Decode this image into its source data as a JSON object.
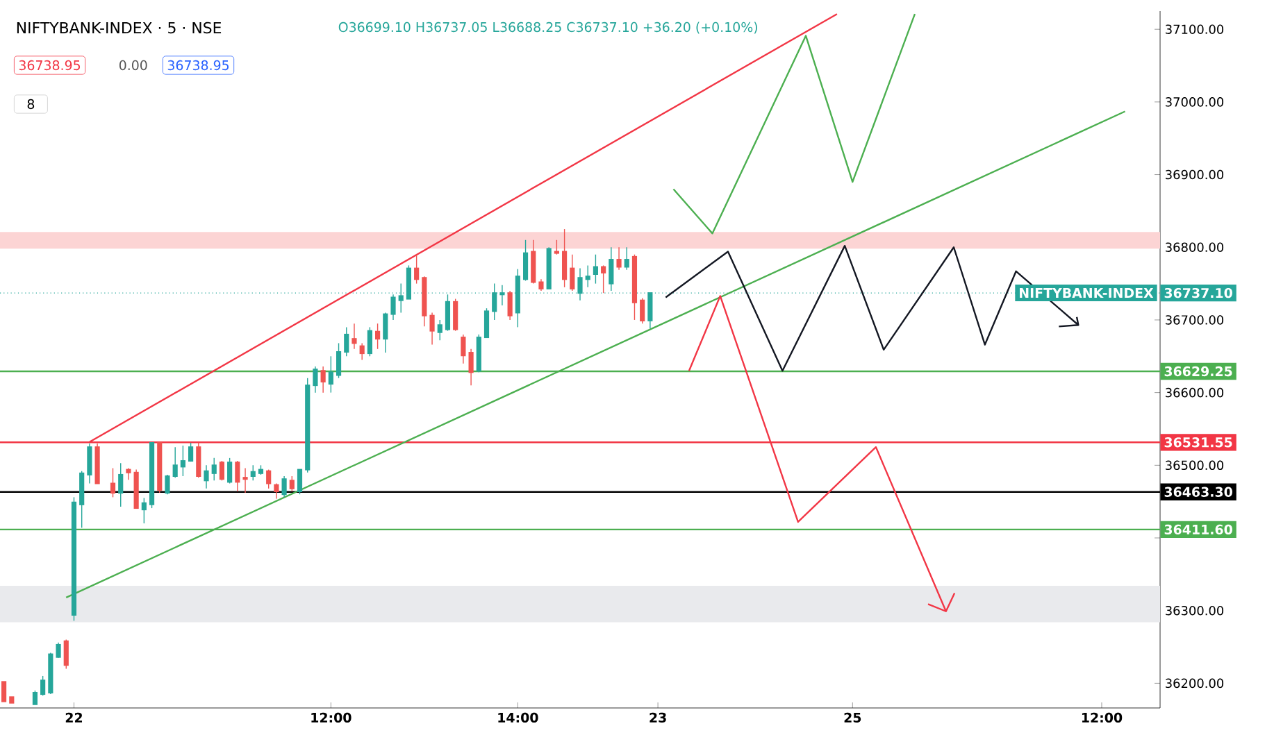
{
  "chart_data": {
    "type": "candlestick",
    "title": "NIFTYBANK-INDEX · 5 · NSE",
    "annotations": [
      "O36699.10 H36737.05 L36688.25 C36737.10 +36.20 (+0.10%)",
      "36738.95",
      "0.00",
      "36738.95",
      "8",
      "NIFTYBANK-INDEX"
    ],
    "categories": [
      null,
      null,
      null,
      null,
      null,
      null,
      null,
      null,
      null,
      "22",
      null,
      null,
      null,
      null,
      null,
      null,
      null,
      null,
      null,
      null,
      null,
      null,
      null,
      null,
      null,
      null,
      null,
      null,
      null,
      null,
      null,
      null,
      null,
      null,
      null,
      null,
      null,
      null,
      null,
      null,
      null,
      null,
      "12:00",
      null,
      null,
      null,
      null,
      null,
      null,
      null,
      null,
      null,
      null,
      null,
      null,
      null,
      null,
      null,
      null,
      null,
      null,
      null,
      null,
      null,
      null,
      null,
      "14:00",
      null,
      null,
      null,
      null,
      null,
      null,
      null,
      null,
      null,
      null,
      null,
      null,
      null,
      null,
      null,
      null,
      null,
      "23",
      null,
      null,
      null,
      null,
      null,
      null,
      null,
      null,
      null,
      null,
      null,
      null,
      null,
      null,
      null,
      null,
      null,
      null,
      null,
      null,
      null,
      null,
      null,
      null,
      "25",
      null,
      null,
      null,
      null,
      null,
      null,
      null,
      null,
      null,
      null,
      null,
      null,
      null,
      null,
      null,
      null,
      null,
      null,
      null,
      null,
      null,
      null,
      null,
      null,
      null,
      null,
      null,
      null,
      null,
      null,
      null,
      "12:00",
      null,
      null,
      null,
      null,
      null,
      null,
      null
    ],
    "ohlc": [
      [
        36202,
        36202,
        36175,
        36175
      ],
      [
        36181,
        36181,
        36173,
        36173
      ],
      null,
      null,
      [
        36171,
        36190,
        36171,
        36187
      ],
      [
        36185,
        36210,
        36183,
        36204
      ],
      [
        36187,
        36242,
        36185,
        36240
      ],
      [
        36236,
        36256,
        36235,
        36253
      ],
      [
        36258,
        36260,
        36220,
        36225
      ],
      [
        36294,
        36456,
        36286,
        36449
      ],
      [
        36446,
        36492,
        36414,
        36489
      ],
      [
        36487,
        36530,
        36475,
        36525
      ],
      [
        36525,
        36530,
        36475,
        36475
      ],
      null,
      [
        36475,
        36496,
        36456,
        36462
      ],
      [
        36462,
        36503,
        36443,
        36487
      ],
      [
        36494,
        36496,
        36480,
        36490
      ],
      [
        36490,
        36494,
        36441,
        36441
      ],
      [
        36439,
        36455,
        36420,
        36448
      ],
      [
        36446,
        36531,
        36441,
        36531
      ],
      [
        36531,
        36531,
        36462,
        36466
      ],
      [
        36462,
        36487,
        36460,
        36485
      ],
      [
        36485,
        36525,
        36483,
        36500
      ],
      [
        36498,
        36527,
        36485,
        36506
      ],
      [
        36506,
        36531,
        36505,
        36525
      ],
      [
        36525,
        36531,
        36483,
        36485
      ],
      [
        36479,
        36500,
        36468,
        36492
      ],
      [
        36489,
        36510,
        36479,
        36500
      ],
      [
        36504,
        36506,
        36479,
        36481
      ],
      [
        36477,
        36510,
        36475,
        36504
      ],
      [
        36504,
        36506,
        36464,
        36477
      ],
      [
        36483,
        36496,
        36462,
        36481
      ],
      [
        36485,
        36500,
        36479,
        36491
      ],
      [
        36489,
        36500,
        36487,
        36494
      ],
      [
        36492,
        36494,
        36468,
        36475
      ],
      [
        36473,
        36475,
        36454,
        36464
      ],
      [
        36460,
        36485,
        36456,
        36481
      ],
      [
        36479,
        36485,
        36464,
        36468
      ],
      [
        36464,
        36494,
        36460,
        36494
      ],
      [
        36494,
        36620,
        36490,
        36610
      ],
      [
        36610,
        36636,
        36600,
        36632
      ],
      [
        36630,
        36636,
        36600,
        36615
      ],
      [
        36612,
        36650,
        36600,
        36628
      ],
      [
        36624,
        36668,
        36620,
        36656
      ],
      [
        36656,
        36690,
        36650,
        36680
      ],
      [
        36674,
        36695,
        36660,
        36668
      ],
      [
        36664,
        36668,
        36645,
        36654
      ],
      [
        36654,
        36690,
        36650,
        36685
      ],
      [
        36684,
        36695,
        36660,
        36674
      ],
      [
        36674,
        36710,
        36655,
        36708
      ],
      [
        36708,
        36735,
        36700,
        36731
      ],
      [
        36727,
        36750,
        36710,
        36733
      ],
      [
        36729,
        36775,
        36729,
        36771
      ],
      [
        36771,
        36790,
        36750,
        36756
      ],
      [
        36758,
        36760,
        36691,
        36706
      ],
      [
        36706,
        36710,
        36666,
        36685
      ],
      [
        36683,
        36700,
        36672,
        36693
      ],
      [
        36687,
        36735,
        36685,
        36725
      ],
      [
        36725,
        36729,
        36685,
        36687
      ],
      [
        36676,
        36680,
        36640,
        36651
      ],
      [
        36655,
        36660,
        36610,
        36628
      ],
      [
        36630,
        36680,
        36628,
        36676
      ],
      [
        36676,
        36716,
        36676,
        36712
      ],
      [
        36712,
        36750,
        36700,
        36737
      ],
      [
        36735,
        36748,
        36720,
        36737
      ],
      [
        36737,
        36740,
        36700,
        36706
      ],
      [
        36710,
        36770,
        36690,
        36760
      ],
      [
        36756,
        36810,
        36754,
        36792
      ],
      [
        36794,
        36810,
        36750,
        36752
      ],
      [
        36752,
        36756,
        36740,
        36743
      ],
      [
        36743,
        36800,
        36743,
        36798
      ],
      [
        36794,
        36810,
        36790,
        36792
      ],
      [
        36794,
        36825,
        36745,
        36756
      ],
      [
        36771,
        36790,
        36740,
        36743
      ],
      [
        36737,
        36771,
        36727,
        36758
      ],
      [
        36756,
        36775,
        36745,
        36760
      ],
      [
        36763,
        36790,
        36750,
        36773
      ],
      [
        36773,
        36775,
        36737,
        36765
      ],
      [
        36750,
        36800,
        36740,
        36783
      ],
      [
        36783,
        36800,
        36769,
        36773
      ],
      [
        36773,
        36800,
        36769,
        36783
      ],
      [
        36787,
        36790,
        36700,
        36724
      ],
      [
        36727,
        36730,
        36695,
        36699
      ],
      [
        36699.1,
        36737.1,
        36688.25,
        36737.1
      ],
      null,
      null,
      null,
      null,
      null,
      null,
      null,
      null,
      null,
      null,
      null,
      null,
      null,
      null,
      null,
      null,
      null,
      null,
      null,
      null,
      null,
      null,
      null,
      null,
      null,
      null,
      null,
      null,
      null,
      null,
      null,
      null,
      null,
      null,
      null,
      null,
      null,
      null,
      null,
      null,
      null,
      null,
      null,
      null,
      null,
      null,
      null,
      null,
      null,
      null,
      null,
      null,
      null,
      null,
      null,
      null,
      null,
      null,
      null,
      null,
      null,
      null,
      null,
      null,
      null
    ],
    "series": [
      {
        "type": "line",
        "color": "#f23645",
        "values": [
          null,
          null,
          null,
          null,
          null,
          null,
          null,
          null,
          null,
          null,
          null,
          36532,
          null,
          null,
          null,
          null,
          null,
          null,
          null,
          null,
          null,
          null,
          null,
          null,
          null,
          null,
          null,
          null,
          null,
          null,
          null,
          null,
          null,
          null,
          null,
          null,
          null,
          null,
          null,
          null,
          null,
          null,
          null,
          null,
          null,
          null,
          null,
          null,
          null,
          null,
          null,
          null,
          null,
          null,
          null,
          null,
          null,
          null,
          null,
          null,
          null,
          null,
          null,
          null,
          null,
          null,
          null,
          null,
          null,
          null,
          null,
          null,
          null,
          null,
          null,
          null,
          null,
          null,
          null,
          null,
          null,
          null,
          null,
          null,
          null,
          null,
          null,
          null,
          null,
          null,
          null,
          null,
          null,
          null,
          null,
          null,
          null,
          null,
          null,
          null,
          null,
          null,
          null,
          null,
          null,
          null,
          null,
          37121,
          null,
          null,
          null,
          null,
          null,
          null,
          null,
          null,
          null,
          null,
          null,
          null,
          null,
          null,
          null,
          null,
          null,
          null,
          null,
          null,
          null,
          null,
          null,
          null,
          null,
          null,
          null,
          null,
          null,
          null,
          null,
          null,
          null,
          null,
          null,
          null,
          null,
          null,
          null,
          null,
          null
        ]
      },
      {
        "type": "line",
        "color": "#4caf50",
        "values": [
          null,
          null,
          null,
          null,
          null,
          null,
          null,
          null,
          36318,
          null,
          null,
          null,
          null,
          null,
          null,
          null,
          null,
          null,
          null,
          null,
          null,
          null,
          null,
          null,
          null,
          null,
          null,
          null,
          null,
          null,
          null,
          null,
          null,
          null,
          null,
          null,
          null,
          null,
          null,
          null,
          null,
          null,
          null,
          null,
          null,
          null,
          null,
          null,
          null,
          null,
          null,
          null,
          null,
          null,
          null,
          null,
          null,
          null,
          null,
          null,
          null,
          null,
          null,
          null,
          null,
          null,
          null,
          null,
          null,
          null,
          null,
          null,
          null,
          null,
          null,
          null,
          null,
          null,
          null,
          null,
          null,
          null,
          null,
          null,
          null,
          null,
          null,
          null,
          null,
          null,
          null,
          null,
          null,
          null,
          null,
          null,
          null,
          null,
          null,
          null,
          null,
          null,
          null,
          null,
          null,
          null,
          null,
          null,
          null,
          null,
          null,
          null,
          null,
          null,
          null,
          null,
          null,
          null,
          null,
          null,
          null,
          null,
          null,
          null,
          null,
          null,
          null,
          null,
          null,
          null,
          null,
          null,
          null,
          null,
          null,
          null,
          null,
          null,
          null,
          null,
          null,
          null,
          null,
          null,
          36987,
          null,
          null,
          null,
          null
        ]
      },
      {
        "type": "line",
        "color": "#4caf50",
        "values": [
          null,
          null,
          null,
          null,
          null,
          null,
          null,
          null,
          null,
          null,
          null,
          null,
          null,
          null,
          null,
          null,
          null,
          null,
          null,
          null,
          null,
          null,
          null,
          null,
          null,
          null,
          null,
          null,
          null,
          null,
          null,
          null,
          null,
          null,
          null,
          null,
          null,
          null,
          null,
          null,
          null,
          null,
          null,
          null,
          null,
          null,
          null,
          null,
          null,
          null,
          null,
          null,
          null,
          null,
          null,
          null,
          null,
          null,
          null,
          null,
          null,
          null,
          null,
          null,
          null,
          null,
          null,
          null,
          null,
          null,
          null,
          null,
          null,
          null,
          null,
          null,
          null,
          null,
          null,
          null,
          null,
          null,
          null,
          null,
          null,
          null,
          36880,
          null,
          null,
          null,
          null,
          36819,
          null,
          null,
          null,
          null,
          null,
          null,
          null,
          null,
          null,
          null,
          null,
          37091,
          null,
          null,
          null,
          null,
          null,
          36890,
          null,
          null,
          null,
          null,
          null,
          null,
          null,
          37121,
          null,
          null,
          null,
          null,
          null,
          null,
          null,
          null,
          null,
          null,
          null,
          null,
          null,
          null,
          null,
          null,
          null,
          null,
          null,
          null,
          null,
          null,
          null,
          null,
          null,
          null,
          null,
          null,
          null,
          null,
          null
        ]
      },
      {
        "type": "line",
        "color": "#131722",
        "values": [
          null,
          null,
          null,
          null,
          null,
          null,
          null,
          null,
          null,
          null,
          null,
          null,
          null,
          null,
          null,
          null,
          null,
          null,
          null,
          null,
          null,
          null,
          null,
          null,
          null,
          null,
          null,
          null,
          null,
          null,
          null,
          null,
          null,
          null,
          null,
          null,
          null,
          null,
          null,
          null,
          null,
          null,
          null,
          null,
          null,
          null,
          null,
          null,
          null,
          null,
          null,
          null,
          null,
          null,
          null,
          null,
          null,
          null,
          null,
          null,
          null,
          null,
          null,
          null,
          null,
          null,
          null,
          null,
          null,
          null,
          null,
          null,
          null,
          null,
          null,
          null,
          null,
          null,
          null,
          null,
          null,
          null,
          null,
          null,
          null,
          36731,
          null,
          null,
          null,
          null,
          null,
          null,
          null,
          36794,
          null,
          null,
          null,
          null,
          null,
          null,
          36630,
          null,
          null,
          null,
          null,
          null,
          null,
          null,
          36802,
          null,
          null,
          null,
          null,
          36659,
          null,
          null,
          null,
          null,
          null,
          null,
          null,
          null,
          36800,
          null,
          null,
          null,
          36666,
          null,
          null,
          null,
          36767,
          null,
          null,
          null,
          null,
          null,
          null,
          null,
          36693,
          null,
          null,
          null,
          null,
          null,
          null,
          null,
          null,
          null,
          null
        ]
      },
      {
        "type": "line",
        "color": "#f23645",
        "values": [
          null,
          null,
          null,
          null,
          null,
          null,
          null,
          null,
          null,
          null,
          null,
          null,
          null,
          null,
          null,
          null,
          null,
          null,
          null,
          null,
          null,
          null,
          null,
          null,
          null,
          null,
          null,
          null,
          null,
          null,
          null,
          null,
          null,
          null,
          null,
          null,
          null,
          null,
          null,
          null,
          null,
          null,
          null,
          null,
          null,
          null,
          null,
          null,
          null,
          null,
          null,
          null,
          null,
          null,
          null,
          null,
          null,
          null,
          null,
          null,
          null,
          null,
          null,
          null,
          null,
          null,
          null,
          null,
          null,
          null,
          null,
          null,
          null,
          null,
          null,
          null,
          null,
          null,
          null,
          null,
          null,
          null,
          null,
          null,
          null,
          null,
          null,
          null,
          36630,
          null,
          null,
          null,
          36733,
          null,
          null,
          null,
          null,
          null,
          null,
          null,
          null,
          null,
          36422,
          null,
          null,
          null,
          null,
          null,
          null,
          null,
          null,
          null,
          36525,
          null,
          null,
          null,
          null,
          null,
          null,
          null,
          null,
          36299,
          null,
          null,
          null,
          null,
          null,
          null,
          null,
          null,
          null,
          null,
          null,
          null,
          null,
          null,
          null,
          null,
          null,
          null,
          null,
          null,
          null,
          null,
          null,
          null,
          null,
          null,
          null
        ]
      }
    ],
    "ref_lines": [
      {
        "axis": "y",
        "value": 36737.1,
        "label": "36737.10",
        "color": "#26a69a",
        "line_style": "dotted"
      },
      {
        "axis": "y",
        "value": 36629.25,
        "label": "36629.25",
        "color": "#4caf50"
      },
      {
        "axis": "y",
        "value": 36531.55,
        "label": "36531.55",
        "color": "#f23645"
      },
      {
        "axis": "y",
        "value": 36463.3,
        "label": "36463.30",
        "color": "#000000"
      },
      {
        "axis": "y",
        "value": 36411.6,
        "label": "36411.60",
        "color": "#4caf50"
      }
    ],
    "bands": [
      {
        "axis": "y",
        "from": 36798,
        "to": 36821,
        "color": "#fcd4d4"
      },
      {
        "axis": "y",
        "from": 36284,
        "to": 36334,
        "color": "#e9eaed"
      }
    ],
    "ylim": [
      36166,
      37125
    ],
    "yticks": [
      {
        "value": 36200,
        "label": "36200.00"
      },
      {
        "value": 36300,
        "label": "36300.00"
      },
      {
        "value": 36400,
        "label": null
      },
      {
        "value": 36500,
        "label": "36500.00"
      },
      {
        "value": 36600,
        "label": "36600.00"
      },
      {
        "value": 36700,
        "label": "36700.00"
      },
      {
        "value": 36800,
        "label": "36800.00"
      },
      {
        "value": 36900,
        "label": "36900.00"
      },
      {
        "value": 37000,
        "label": "37000.00"
      },
      {
        "value": 37100,
        "label": "37100.00"
      }
    ]
  }
}
